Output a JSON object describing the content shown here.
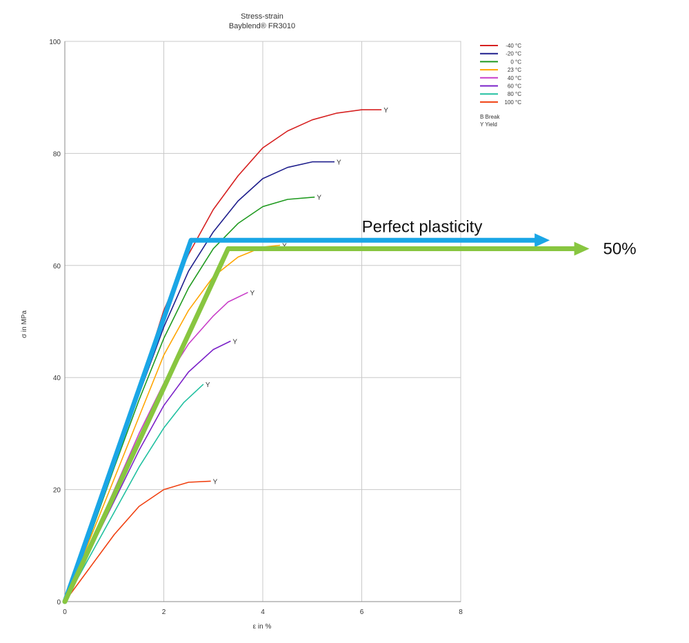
{
  "chart_data": {
    "type": "line",
    "title": "Stress-strain",
    "subtitle": "Bayblend® FR3010",
    "xlabel": "ε in %",
    "ylabel": "σ in MPa",
    "xlim": [
      0,
      8
    ],
    "ylim": [
      0,
      100
    ],
    "x_ticks": [
      0,
      2,
      4,
      6,
      8
    ],
    "y_ticks": [
      0,
      20,
      40,
      60,
      80,
      100
    ],
    "grid": true,
    "legend_position": "top-right",
    "legend_notes": [
      "B Break",
      "Y Yield"
    ],
    "series": [
      {
        "name": "-40 °C",
        "color": "#d62020",
        "points": [
          [
            0,
            0
          ],
          [
            0.5,
            12
          ],
          [
            1,
            25
          ],
          [
            1.5,
            38
          ],
          [
            2,
            52
          ],
          [
            2.5,
            62
          ],
          [
            3,
            70
          ],
          [
            3.5,
            76
          ],
          [
            4,
            81
          ],
          [
            4.5,
            84
          ],
          [
            5,
            86
          ],
          [
            5.5,
            87.2
          ],
          [
            6,
            87.8
          ],
          [
            6.4,
            87.8
          ]
        ],
        "marker": "Y"
      },
      {
        "name": "-20 °C",
        "color": "#1e1e8c",
        "points": [
          [
            0,
            0
          ],
          [
            0.5,
            12
          ],
          [
            1,
            25
          ],
          [
            1.5,
            37
          ],
          [
            2,
            49
          ],
          [
            2.5,
            59
          ],
          [
            3,
            66
          ],
          [
            3.5,
            71.5
          ],
          [
            4,
            75.5
          ],
          [
            4.5,
            77.5
          ],
          [
            5,
            78.5
          ],
          [
            5.45,
            78.5
          ]
        ],
        "marker": "Y"
      },
      {
        "name": "0 °C",
        "color": "#1f9a1f",
        "points": [
          [
            0,
            0
          ],
          [
            0.5,
            11.5
          ],
          [
            1,
            24
          ],
          [
            1.5,
            36
          ],
          [
            2,
            47
          ],
          [
            2.5,
            56
          ],
          [
            3,
            63
          ],
          [
            3.5,
            67.5
          ],
          [
            4,
            70.5
          ],
          [
            4.5,
            71.8
          ],
          [
            5.05,
            72.2
          ]
        ],
        "marker": "Y"
      },
      {
        "name": "23 °C",
        "color": "#ffa500",
        "points": [
          [
            0,
            0
          ],
          [
            0.5,
            11
          ],
          [
            1,
            22
          ],
          [
            1.5,
            33
          ],
          [
            2,
            44
          ],
          [
            2.5,
            52
          ],
          [
            3,
            58
          ],
          [
            3.5,
            61.5
          ],
          [
            4,
            63.3
          ],
          [
            4.35,
            63.6
          ]
        ],
        "marker": "Y"
      },
      {
        "name": "40 °C",
        "color": "#c83cc8",
        "points": [
          [
            0,
            0
          ],
          [
            0.5,
            10
          ],
          [
            1,
            20
          ],
          [
            1.5,
            30
          ],
          [
            2,
            39
          ],
          [
            2.5,
            46
          ],
          [
            3,
            51
          ],
          [
            3.3,
            53.5
          ],
          [
            3.7,
            55.2
          ]
        ],
        "marker": "Y"
      },
      {
        "name": "60 °C",
        "color": "#7a20c8",
        "points": [
          [
            0,
            0
          ],
          [
            0.5,
            9
          ],
          [
            1,
            18
          ],
          [
            1.5,
            27
          ],
          [
            2,
            35
          ],
          [
            2.5,
            41
          ],
          [
            3,
            45
          ],
          [
            3.35,
            46.5
          ]
        ],
        "marker": "Y"
      },
      {
        "name": "80 °C",
        "color": "#20c0a0",
        "points": [
          [
            0,
            0
          ],
          [
            0.5,
            8
          ],
          [
            1,
            16
          ],
          [
            1.5,
            24
          ],
          [
            2,
            31
          ],
          [
            2.4,
            35.5
          ],
          [
            2.8,
            38.8
          ]
        ],
        "marker": "Y"
      },
      {
        "name": "100 °C",
        "color": "#f04010",
        "points": [
          [
            0,
            0
          ],
          [
            0.5,
            6
          ],
          [
            1,
            12
          ],
          [
            1.5,
            17
          ],
          [
            2,
            20
          ],
          [
            2.5,
            21.3
          ],
          [
            2.95,
            21.5
          ]
        ],
        "marker": "Y"
      }
    ],
    "annotations": [
      {
        "label": "Perfect plasticity",
        "color": "#1aa6e6",
        "points": [
          [
            0,
            0
          ],
          [
            2.55,
            64.5
          ]
        ],
        "arrow_from": [
          2.55,
          64.5
        ],
        "arrow_to": [
          9.8,
          64.5
        ]
      },
      {
        "label": "50%",
        "color": "#88c640",
        "points": [
          [
            0,
            0
          ],
          [
            3.3,
            63
          ]
        ],
        "arrow_from": [
          3.3,
          63
        ],
        "arrow_to": [
          10.6,
          63
        ]
      }
    ]
  }
}
